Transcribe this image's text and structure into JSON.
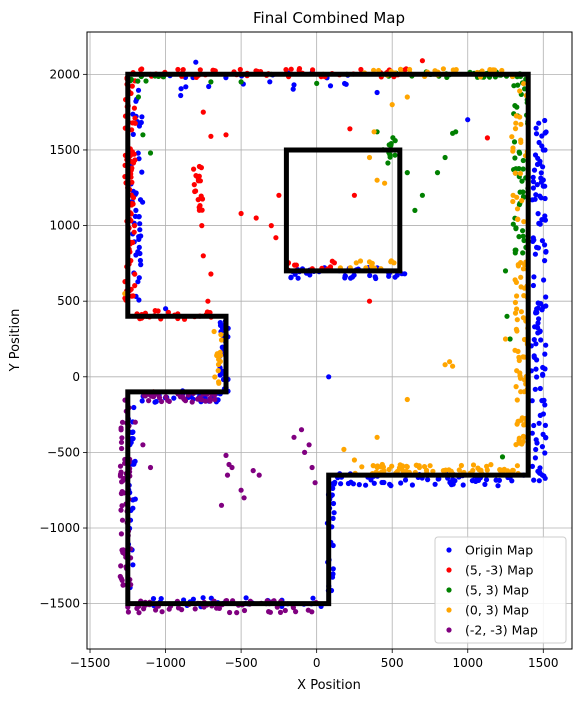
{
  "chart_data": {
    "type": "scatter",
    "title": "Final Combined Map",
    "xlabel": "X Position",
    "ylabel": "Y Position",
    "xlim": [
      -1520,
      1690
    ],
    "ylim": [
      -1800,
      2280
    ],
    "xticks": [
      -1500,
      -1000,
      -500,
      0,
      500,
      1000,
      1500
    ],
    "yticks": [
      -1500,
      -1000,
      -500,
      0,
      500,
      1000,
      1500,
      2000
    ],
    "xtick_labels": [
      "−1500",
      "−1000",
      "−500",
      "0",
      "500",
      "1000",
      "1500"
    ],
    "ytick_labels": [
      "−1500",
      "−1000",
      "−500",
      "0",
      "500",
      "1000",
      "1500",
      "2000"
    ],
    "grid": true,
    "legend_position": "lower-right",
    "walls": {
      "outer": [
        [
          -1250,
          2000
        ],
        [
          1400,
          2000
        ],
        [
          1400,
          -650
        ],
        [
          80,
          -650
        ],
        [
          80,
          -1500
        ],
        [
          -1250,
          -1500
        ],
        [
          -1250,
          -100
        ],
        [
          -600,
          -100
        ],
        [
          -600,
          400
        ],
        [
          -1250,
          400
        ],
        [
          -1250,
          2000
        ]
      ],
      "inner": [
        [
          -200,
          1500
        ],
        [
          550,
          1500
        ],
        [
          550,
          700
        ],
        [
          -200,
          700
        ],
        [
          -200,
          1500
        ]
      ]
    },
    "series": [
      {
        "name": "Origin Map",
        "color": "#0000ff",
        "clusters": [
          {
            "x": [
              -1230,
              -1150
            ],
            "y": [
              500,
              1900
            ],
            "n": 45
          },
          {
            "x": [
              -1250,
              -1200
            ],
            "y": [
              -1400,
              -200
            ],
            "n": 30
          },
          {
            "x": [
              -1200,
              60
            ],
            "y": [
              -1520,
              -1460
            ],
            "n": 35
          },
          {
            "x": [
              70,
              120
            ],
            "y": [
              -1480,
              -700
            ],
            "n": 25
          },
          {
            "x": [
              100,
              1300
            ],
            "y": [
              -720,
              -640
            ],
            "n": 60
          },
          {
            "x": [
              1420,
              1520
            ],
            "y": [
              -700,
              1700
            ],
            "n": 120
          },
          {
            "x": [
              -1200,
              -620
            ],
            "y": [
              -170,
              -90
            ],
            "n": 30
          },
          {
            "x": [
              -640,
              -580
            ],
            "y": [
              -100,
              400
            ],
            "n": 30
          },
          {
            "x": [
              -180,
              600
            ],
            "y": [
              650,
              730
            ],
            "n": 40
          },
          {
            "x": [
              -1150,
              300
            ],
            "y": [
              1900,
              2020
            ],
            "n": 20
          }
        ],
        "points": [
          [
            -1000,
            450
          ],
          [
            -800,
            2080
          ],
          [
            -900,
            1860
          ],
          [
            -150,
            1930
          ],
          [
            400,
            1880
          ],
          [
            1000,
            1700
          ],
          [
            1500,
            1500
          ],
          [
            -1030,
            400
          ],
          [
            80,
            0
          ],
          [
            -180,
            2000
          ],
          [
            1370,
            -650
          ],
          [
            1200,
            -720
          ]
        ]
      },
      {
        "name": "(5, -3) Map",
        "color": "#ff0000",
        "clusters": [
          {
            "x": [
              -1270,
              -1200
            ],
            "y": [
              450,
              2020
            ],
            "n": 70
          },
          {
            "x": [
              -1220,
              650
            ],
            "y": [
              1980,
              2040
            ],
            "n": 60
          },
          {
            "x": [
              -1200,
              -680
            ],
            "y": [
              380,
              440
            ],
            "n": 25
          },
          {
            "x": [
              -820,
              -750
            ],
            "y": [
              1100,
              1400
            ],
            "n": 18
          },
          {
            "x": [
              -200,
              150
            ],
            "y": [
              700,
              770
            ],
            "n": 15
          }
        ],
        "points": [
          [
            -1100,
            2000
          ],
          [
            -750,
            1750
          ],
          [
            -700,
            1590
          ],
          [
            -600,
            1600
          ],
          [
            -500,
            1080
          ],
          [
            -400,
            1050
          ],
          [
            -300,
            1000
          ],
          [
            -270,
            920
          ],
          [
            -250,
            1200
          ],
          [
            -760,
            1000
          ],
          [
            -750,
            800
          ],
          [
            -700,
            680
          ],
          [
            -720,
            500
          ],
          [
            220,
            1640
          ],
          [
            250,
            1200
          ],
          [
            350,
            500
          ],
          [
            700,
            2090
          ],
          [
            1130,
            1580
          ],
          [
            -1080,
            -100
          ]
        ]
      },
      {
        "name": "(5, 3) Map",
        "color": "#008000",
        "clusters": [
          {
            "x": [
              1300,
              1400
            ],
            "y": [
              800,
              1990
            ],
            "n": 50
          },
          {
            "x": [
              400,
              1350
            ],
            "y": [
              1980,
              2020
            ],
            "n": 35
          },
          {
            "x": [
              -1250,
              -1000
            ],
            "y": [
              1940,
              2000
            ],
            "n": 10
          },
          {
            "x": [
              430,
              520
            ],
            "y": [
              1400,
              1600
            ],
            "n": 12
          }
        ],
        "points": [
          [
            -1180,
            1850
          ],
          [
            -1150,
            1600
          ],
          [
            -1100,
            1480
          ],
          [
            -700,
            1950
          ],
          [
            -500,
            1950
          ],
          [
            0,
            1940
          ],
          [
            200,
            2000
          ],
          [
            400,
            1620
          ],
          [
            600,
            1350
          ],
          [
            650,
            1100
          ],
          [
            700,
            1200
          ],
          [
            800,
            1350
          ],
          [
            850,
            1450
          ],
          [
            900,
            1610
          ],
          [
            920,
            1620
          ],
          [
            1250,
            700
          ],
          [
            1260,
            400
          ],
          [
            1280,
            250
          ],
          [
            1230,
            -530
          ],
          [
            -300,
            2000
          ]
        ]
      },
      {
        "name": "(0, 3) Map",
        "color": "#ffa500",
        "clusters": [
          {
            "x": [
              250,
              1350
            ],
            "y": [
              -640,
              -580
            ],
            "n": 70
          },
          {
            "x": [
              1310,
              1400
            ],
            "y": [
              -450,
              800
            ],
            "n": 65
          },
          {
            "x": [
              1290,
              1400
            ],
            "y": [
              1000,
              2000
            ],
            "n": 25
          },
          {
            "x": [
              150,
              520
            ],
            "y": [
              700,
              770
            ],
            "n": 15
          },
          {
            "x": [
              300,
              1250
            ],
            "y": [
              1980,
              2040
            ],
            "n": 30
          },
          {
            "x": [
              -680,
              -620
            ],
            "y": [
              -50,
              350
            ],
            "n": 14
          }
        ],
        "points": [
          [
            380,
            1620
          ],
          [
            350,
            1450
          ],
          [
            400,
            1300
          ],
          [
            450,
            1280
          ],
          [
            500,
            1800
          ],
          [
            600,
            1850
          ],
          [
            850,
            80
          ],
          [
            900,
            70
          ],
          [
            880,
            100
          ],
          [
            600,
            -150
          ],
          [
            1250,
            250
          ],
          [
            1300,
            1200
          ],
          [
            180,
            -480
          ],
          [
            250,
            -550
          ],
          [
            400,
            -400
          ],
          [
            -1270,
            550
          ],
          [
            550,
            700
          ]
        ]
      },
      {
        "name": "(-2, -3) Map",
        "color": "#800080",
        "clusters": [
          {
            "x": [
              -1300,
              -1230
            ],
            "y": [
              -1500,
              -150
            ],
            "n": 60
          },
          {
            "x": [
              -1250,
              20
            ],
            "y": [
              -1560,
              -1480
            ],
            "n": 70
          },
          {
            "x": [
              -1150,
              -650
            ],
            "y": [
              -170,
              -110
            ],
            "n": 35
          }
        ],
        "points": [
          [
            -600,
            -520
          ],
          [
            -580,
            -580
          ],
          [
            -560,
            -600
          ],
          [
            -590,
            -650
          ],
          [
            -630,
            -850
          ],
          [
            -420,
            -620
          ],
          [
            -380,
            -650
          ],
          [
            -500,
            -750
          ],
          [
            -480,
            -800
          ],
          [
            -150,
            -400
          ],
          [
            -100,
            -350
          ],
          [
            -80,
            -500
          ],
          [
            -50,
            -450
          ],
          [
            -30,
            -600
          ],
          [
            -10,
            -700
          ],
          [
            -1200,
            -300
          ],
          [
            -1150,
            -450
          ],
          [
            -1100,
            -600
          ]
        ]
      }
    ]
  }
}
